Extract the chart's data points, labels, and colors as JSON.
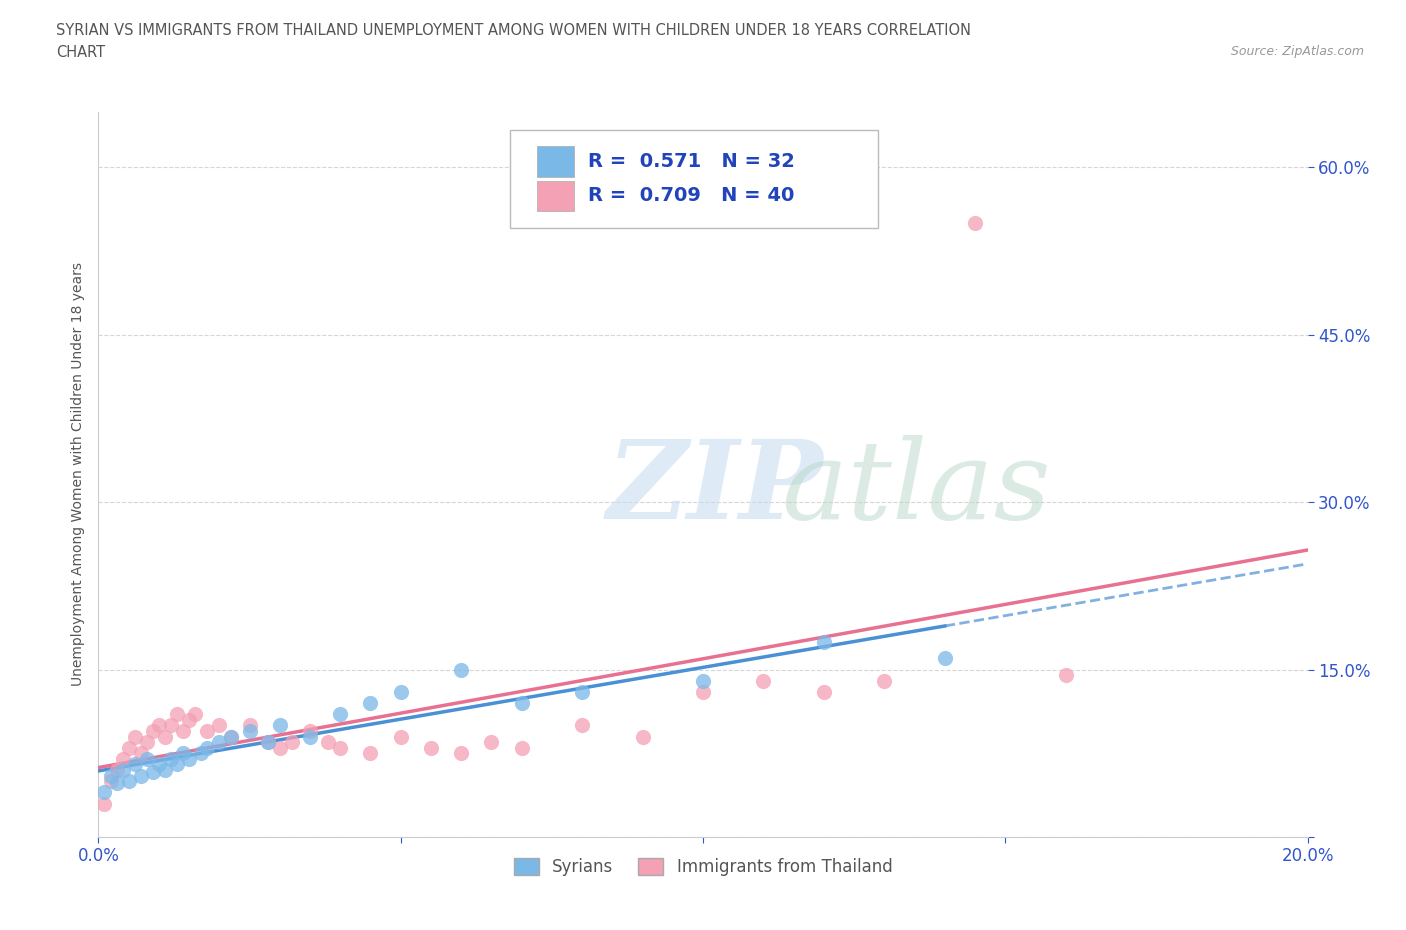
{
  "title_line1": "SYRIAN VS IMMIGRANTS FROM THAILAND UNEMPLOYMENT AMONG WOMEN WITH CHILDREN UNDER 18 YEARS CORRELATION",
  "title_line2": "CHART",
  "source": "Source: ZipAtlas.com",
  "ylabel": "Unemployment Among Women with Children Under 18 years",
  "xlim": [
    0.0,
    0.2
  ],
  "ylim": [
    0.0,
    0.65
  ],
  "xtick_positions": [
    0.0,
    0.05,
    0.1,
    0.15,
    0.2
  ],
  "xtick_labels": [
    "0.0%",
    "",
    "",
    "",
    "20.0%"
  ],
  "ytick_positions": [
    0.0,
    0.15,
    0.3,
    0.45,
    0.6
  ],
  "ytick_labels": [
    "",
    "15.0%",
    "30.0%",
    "45.0%",
    "60.0%"
  ],
  "syrian_color": "#7ab8e8",
  "thailand_color": "#f4a0b5",
  "syrian_line_color": "#4a90d4",
  "thailand_line_color": "#e87090",
  "syrian_R": 0.571,
  "syrian_N": 32,
  "thailand_R": 0.709,
  "thailand_N": 40,
  "legend_labels": [
    "Syrians",
    "Immigrants from Thailand"
  ],
  "syrian_scatter_x": [
    0.001,
    0.002,
    0.003,
    0.004,
    0.005,
    0.006,
    0.007,
    0.008,
    0.009,
    0.01,
    0.011,
    0.012,
    0.013,
    0.014,
    0.015,
    0.017,
    0.018,
    0.02,
    0.022,
    0.025,
    0.028,
    0.03,
    0.035,
    0.04,
    0.045,
    0.05,
    0.06,
    0.07,
    0.08,
    0.1,
    0.12,
    0.14
  ],
  "syrian_scatter_y": [
    0.04,
    0.055,
    0.048,
    0.06,
    0.05,
    0.065,
    0.055,
    0.07,
    0.058,
    0.065,
    0.06,
    0.07,
    0.065,
    0.075,
    0.07,
    0.075,
    0.08,
    0.085,
    0.09,
    0.095,
    0.085,
    0.1,
    0.09,
    0.11,
    0.12,
    0.13,
    0.15,
    0.12,
    0.13,
    0.14,
    0.175,
    0.16
  ],
  "thailand_scatter_x": [
    0.001,
    0.002,
    0.003,
    0.004,
    0.005,
    0.006,
    0.007,
    0.008,
    0.009,
    0.01,
    0.011,
    0.012,
    0.013,
    0.014,
    0.015,
    0.016,
    0.018,
    0.02,
    0.022,
    0.025,
    0.028,
    0.03,
    0.032,
    0.035,
    0.038,
    0.04,
    0.045,
    0.05,
    0.055,
    0.06,
    0.065,
    0.07,
    0.08,
    0.09,
    0.1,
    0.11,
    0.12,
    0.13,
    0.145,
    0.16
  ],
  "thailand_scatter_y": [
    0.03,
    0.05,
    0.06,
    0.07,
    0.08,
    0.09,
    0.075,
    0.085,
    0.095,
    0.1,
    0.09,
    0.1,
    0.11,
    0.095,
    0.105,
    0.11,
    0.095,
    0.1,
    0.09,
    0.1,
    0.085,
    0.08,
    0.085,
    0.095,
    0.085,
    0.08,
    0.075,
    0.09,
    0.08,
    0.075,
    0.085,
    0.08,
    0.1,
    0.09,
    0.13,
    0.14,
    0.13,
    0.14,
    0.55,
    0.145
  ],
  "grid_color": "#cccccc",
  "background_color": "#ffffff",
  "title_color": "#555555",
  "label_color": "#555555",
  "tick_color": "#3355cc",
  "legend_R_color": "#2244bb"
}
